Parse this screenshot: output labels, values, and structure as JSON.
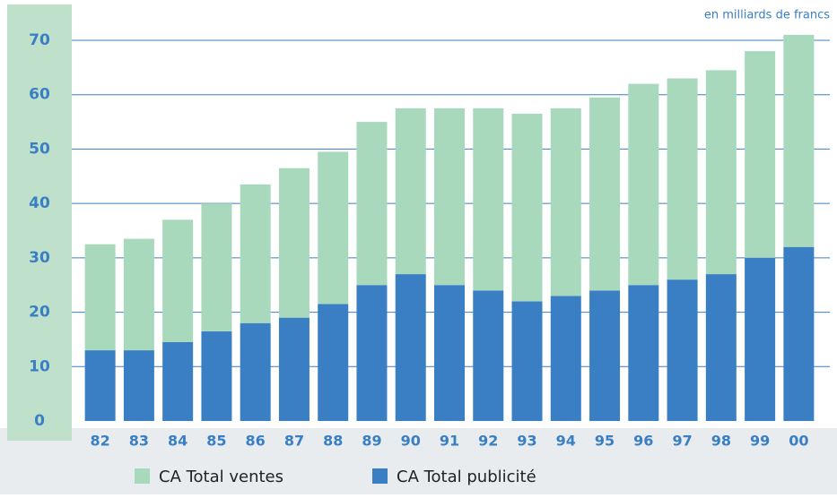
{
  "chart_data": {
    "type": "stacked_bar",
    "subtitle": "en milliards de francs",
    "categories": [
      "82",
      "83",
      "84",
      "85",
      "86",
      "87",
      "88",
      "89",
      "90",
      "91",
      "92",
      "93",
      "94",
      "95",
      "96",
      "97",
      "98",
      "99",
      "00"
    ],
    "series": [
      {
        "name": "CA Total publicité",
        "color": "#3a7fc4",
        "values": [
          13,
          13,
          14.5,
          16.5,
          18,
          19,
          21.5,
          25,
          27,
          25,
          24,
          22,
          23,
          24,
          25,
          26,
          27,
          30,
          32
        ]
      },
      {
        "name": "CA Total ventes",
        "color": "#a9d9bd",
        "values": [
          19.5,
          20.5,
          22.5,
          23.5,
          25.5,
          27.5,
          28,
          30,
          30.5,
          32.5,
          33.5,
          34.5,
          34.5,
          35.5,
          37,
          37,
          37.5,
          38,
          39
        ]
      }
    ],
    "ylim": [
      0,
      70
    ],
    "yticks": [
      0,
      10,
      20,
      30,
      40,
      50,
      60,
      70
    ],
    "grid": true
  }
}
